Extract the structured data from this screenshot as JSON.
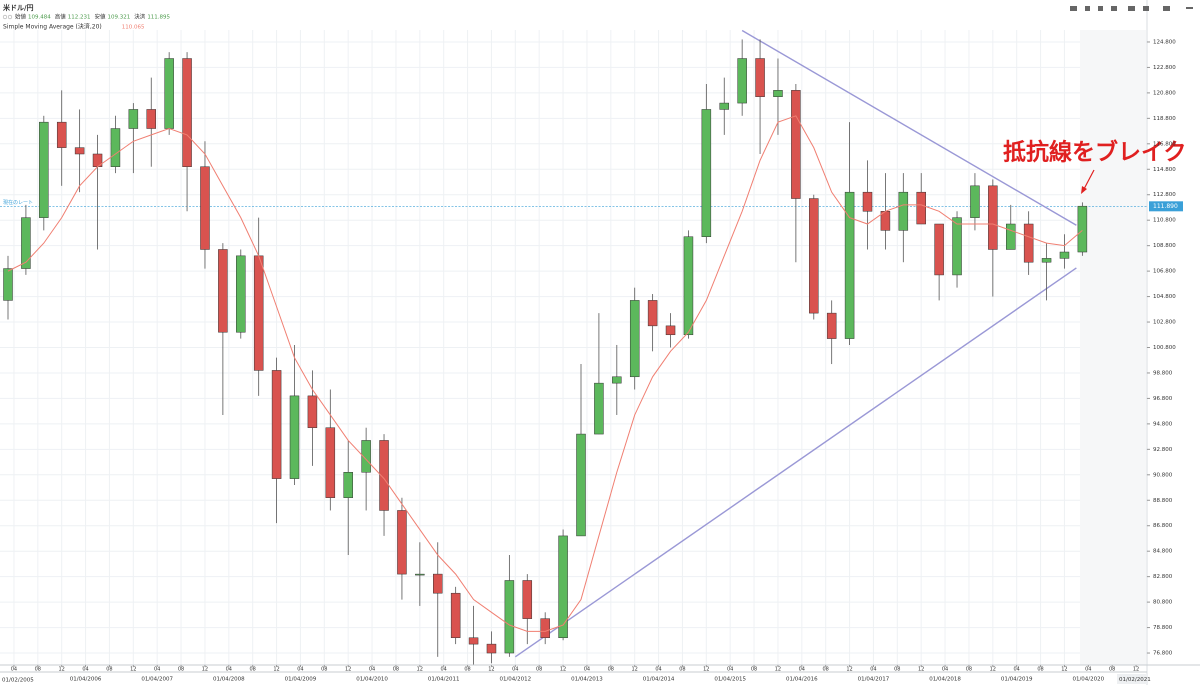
{
  "chart_data": {
    "type": "candlestick",
    "title": "米ドル/円",
    "ohlc_info": [
      {
        "label": "始値",
        "value": 109.484
      },
      {
        "label": "高値",
        "value": 112.231
      },
      {
        "label": "安値",
        "value": 109.321
      },
      {
        "label": "決済",
        "value": 111.895
      }
    ],
    "indicator": {
      "name": "Simple Moving Average (決済,20)",
      "value": 110.065,
      "color": "#f07f72"
    },
    "annotation": "抵抗線をブレイク",
    "current_price": {
      "label": "現在のレート",
      "value": {
        "value": 111.89,
        "label": "111.890"
      }
    },
    "range_start_label": "01/02/2005",
    "range_end_label": "01/02/2021",
    "up_color": "#5cb85c",
    "down_color": "#d9534f",
    "trendline_color": "#9a98d6",
    "grid": true,
    "xlim": [
      "2005-02",
      "2021-02"
    ],
    "ylim": [
      75.86,
      125.74
    ],
    "x": [
      "2005-02",
      "2005-05",
      "2005-08",
      "2005-11",
      "2006-02",
      "2006-05",
      "2006-08",
      "2006-11",
      "2007-02",
      "2007-05",
      "2007-08",
      "2007-11",
      "2008-02",
      "2008-05",
      "2008-08",
      "2008-11",
      "2009-02",
      "2009-05",
      "2009-08",
      "2009-11",
      "2010-02",
      "2010-05",
      "2010-08",
      "2010-11",
      "2011-02",
      "2011-05",
      "2011-08",
      "2011-11",
      "2012-02",
      "2012-05",
      "2012-08",
      "2012-11",
      "2013-02",
      "2013-05",
      "2013-08",
      "2013-11",
      "2014-02",
      "2014-05",
      "2014-08",
      "2014-11",
      "2015-02",
      "2015-05",
      "2015-08",
      "2015-11",
      "2016-02",
      "2016-05",
      "2016-08",
      "2016-11",
      "2017-02",
      "2017-05",
      "2017-08",
      "2017-11",
      "2018-02",
      "2018-05",
      "2018-08",
      "2018-11",
      "2019-02",
      "2019-05",
      "2019-08",
      "2019-11",
      "2020-02"
    ],
    "open": [
      104.5,
      107.0,
      111.0,
      118.5,
      116.5,
      116.0,
      115.0,
      118.0,
      119.5,
      118.0,
      123.5,
      115.0,
      108.5,
      102.0,
      108.0,
      99.0,
      90.5,
      97.0,
      94.5,
      89.0,
      91.0,
      93.5,
      88.0,
      83.0,
      83.0,
      81.5,
      78.0,
      77.5,
      76.8,
      82.5,
      79.5,
      78.0,
      86.0,
      94.0,
      98.0,
      98.5,
      104.5,
      102.5,
      101.8,
      109.5,
      119.5,
      120.0,
      123.5,
      120.5,
      121.0,
      112.5,
      103.5,
      101.5,
      113.0,
      111.5,
      110.0,
      113.0,
      110.5,
      106.5,
      111.0,
      113.5,
      108.5,
      110.5,
      107.5,
      107.8,
      108.3
    ],
    "high": [
      108.0,
      112.0,
      119.0,
      121.0,
      119.5,
      117.5,
      119.0,
      120.0,
      122.0,
      124.0,
      124.0,
      117.0,
      109.0,
      108.5,
      111.0,
      100.0,
      101.0,
      99.0,
      97.5,
      93.5,
      94.5,
      94.0,
      89.0,
      85.5,
      85.5,
      82.0,
      80.5,
      78.5,
      84.5,
      83.0,
      80.0,
      86.5,
      99.5,
      103.5,
      101.0,
      105.5,
      105.0,
      103.5,
      110.0,
      121.5,
      122.0,
      125.0,
      125.0,
      123.5,
      121.5,
      112.8,
      104.5,
      118.5,
      115.5,
      114.5,
      114.5,
      114.5,
      110.5,
      111.5,
      114.5,
      114.0,
      112.0,
      111.5,
      109.0,
      109.7,
      112.2
    ],
    "low": [
      103.0,
      106.5,
      110.0,
      113.5,
      113.0,
      108.5,
      114.5,
      114.5,
      115.0,
      117.5,
      111.5,
      107.0,
      95.5,
      101.5,
      97.0,
      87.0,
      90.0,
      91.5,
      88.0,
      84.5,
      88.0,
      86.0,
      81.0,
      80.5,
      76.5,
      77.5,
      75.9,
      76.0,
      76.5,
      77.5,
      77.5,
      77.8,
      86.0,
      94.0,
      95.5,
      97.5,
      100.5,
      100.8,
      101.5,
      109.0,
      117.5,
      119.0,
      116.0,
      117.5,
      107.5,
      103.0,
      99.5,
      101.0,
      108.5,
      108.5,
      107.5,
      110.5,
      104.5,
      105.5,
      110.0,
      104.8,
      108.5,
      106.5,
      104.5,
      107.0,
      108.0
    ],
    "close": [
      107.0,
      111.0,
      118.5,
      116.5,
      116.0,
      115.0,
      118.0,
      119.5,
      118.0,
      123.5,
      115.0,
      108.5,
      102.0,
      108.0,
      99.0,
      90.5,
      97.0,
      94.5,
      89.0,
      91.0,
      93.5,
      88.0,
      83.0,
      83.0,
      81.5,
      78.0,
      77.5,
      76.8,
      82.5,
      79.5,
      78.0,
      86.0,
      94.0,
      98.0,
      98.5,
      104.5,
      102.5,
      101.8,
      109.5,
      119.5,
      120.0,
      123.5,
      120.5,
      121.0,
      112.5,
      103.5,
      101.5,
      113.0,
      111.5,
      110.0,
      113.0,
      110.5,
      106.5,
      111.0,
      113.5,
      108.5,
      110.5,
      107.5,
      107.8,
      108.3,
      111.9
    ],
    "sma": [
      106.8,
      107.5,
      109.0,
      111.0,
      113.5,
      115.0,
      116.0,
      117.0,
      117.5,
      118.0,
      117.5,
      116.0,
      113.5,
      111.0,
      108.0,
      104.0,
      100.0,
      97.5,
      95.5,
      93.5,
      92.0,
      90.5,
      88.5,
      86.5,
      84.5,
      83.0,
      81.0,
      80.0,
      79.0,
      78.5,
      78.5,
      79.0,
      81.0,
      86.0,
      91.0,
      95.5,
      98.5,
      100.5,
      102.0,
      104.5,
      108.0,
      111.5,
      115.5,
      118.5,
      119.0,
      116.5,
      113.0,
      111.0,
      110.5,
      111.5,
      112.0,
      112.0,
      111.5,
      110.5,
      110.5,
      110.5,
      110.0,
      109.5,
      109.0,
      108.8,
      110.0
    ],
    "trendlines": [
      {
        "x": [
          "2015-06",
          "2020-02"
        ],
        "y": [
          125.7,
          110.4
        ]
      },
      {
        "x": [
          "2012-04",
          "2020-02"
        ],
        "y": [
          76.5,
          107.05
        ]
      }
    ],
    "yticks": [
      {
        "value": 76.8,
        "label": "76.800"
      },
      {
        "value": 78.8,
        "label": "78.800"
      },
      {
        "value": 80.8,
        "label": "80.800"
      },
      {
        "value": 82.8,
        "label": "82.800"
      },
      {
        "value": 84.8,
        "label": "84.800"
      },
      {
        "value": 86.8,
        "label": "86.800"
      },
      {
        "value": 88.8,
        "label": "88.800"
      },
      {
        "value": 90.8,
        "label": "90.800"
      },
      {
        "value": 92.8,
        "label": "92.800"
      },
      {
        "value": 94.8,
        "label": "94.800"
      },
      {
        "value": 96.8,
        "label": "96.800"
      },
      {
        "value": 98.8,
        "label": "98.800"
      },
      {
        "value": 100.8,
        "label": "100.800"
      },
      {
        "value": 102.8,
        "label": "102.800"
      },
      {
        "value": 104.8,
        "label": "104.800"
      },
      {
        "value": 106.8,
        "label": "106.800"
      },
      {
        "value": 108.8,
        "label": "108.800"
      },
      {
        "value": 110.8,
        "label": "110.800"
      },
      {
        "value": 112.8,
        "label": "112.800"
      },
      {
        "value": 114.8,
        "label": "114.800"
      },
      {
        "value": 116.8,
        "label": "116.800"
      },
      {
        "value": 118.8,
        "label": "118.800"
      },
      {
        "value": 120.8,
        "label": "120.800"
      },
      {
        "value": 122.8,
        "label": "122.800"
      },
      {
        "value": 124.8,
        "label": "124.800"
      }
    ],
    "xticks": [
      {
        "value": "2005-04",
        "label": "04"
      },
      {
        "value": "2005-08",
        "label": "08"
      },
      {
        "value": "2005-12",
        "label": "12"
      },
      {
        "value": "2006-04",
        "label": "04"
      },
      {
        "value": "2006-08",
        "label": "08"
      },
      {
        "value": "2006-12",
        "label": "12"
      },
      {
        "value": "2007-04",
        "label": "04"
      },
      {
        "value": "2007-08",
        "label": "08"
      },
      {
        "value": "2007-12",
        "label": "12"
      },
      {
        "value": "2008-04",
        "label": "04"
      },
      {
        "value": "2008-08",
        "label": "08"
      },
      {
        "value": "2008-12",
        "label": "12"
      },
      {
        "value": "2009-04",
        "label": "04"
      },
      {
        "value": "2009-08",
        "label": "08"
      },
      {
        "value": "2009-12",
        "label": "12"
      },
      {
        "value": "2010-04",
        "label": "04"
      },
      {
        "value": "2010-08",
        "label": "08"
      },
      {
        "value": "2010-12",
        "label": "12"
      },
      {
        "value": "2011-04",
        "label": "04"
      },
      {
        "value": "2011-08",
        "label": "08"
      },
      {
        "value": "2011-12",
        "label": "12"
      },
      {
        "value": "2012-04",
        "label": "04"
      },
      {
        "value": "2012-08",
        "label": "08"
      },
      {
        "value": "2012-12",
        "label": "12"
      },
      {
        "value": "2013-04",
        "label": "04"
      },
      {
        "value": "2013-08",
        "label": "08"
      },
      {
        "value": "2013-12",
        "label": "12"
      },
      {
        "value": "2014-04",
        "label": "04"
      },
      {
        "value": "2014-08",
        "label": "08"
      },
      {
        "value": "2014-12",
        "label": "12"
      },
      {
        "value": "2015-04",
        "label": "04"
      },
      {
        "value": "2015-08",
        "label": "08"
      },
      {
        "value": "2015-12",
        "label": "12"
      },
      {
        "value": "2016-04",
        "label": "04"
      },
      {
        "value": "2016-08",
        "label": "08"
      },
      {
        "value": "2016-12",
        "label": "12"
      },
      {
        "value": "2017-04",
        "label": "04"
      },
      {
        "value": "2017-08",
        "label": "08"
      },
      {
        "value": "2017-12",
        "label": "12"
      },
      {
        "value": "2018-04",
        "label": "04"
      },
      {
        "value": "2018-08",
        "label": "08"
      },
      {
        "value": "2018-12",
        "label": "12"
      },
      {
        "value": "2019-04",
        "label": "04"
      },
      {
        "value": "2019-08",
        "label": "08"
      },
      {
        "value": "2019-12",
        "label": "12"
      },
      {
        "value": "2020-04",
        "label": "04"
      },
      {
        "value": "2020-08",
        "label": "08"
      },
      {
        "value": "2020-12",
        "label": "12"
      }
    ],
    "year_labels": [
      {
        "value": "2006-04",
        "label": "01/04/2006"
      },
      {
        "value": "2007-04",
        "label": "01/04/2007"
      },
      {
        "value": "2008-04",
        "label": "01/04/2008"
      },
      {
        "value": "2009-04",
        "label": "01/04/2009"
      },
      {
        "value": "2010-04",
        "label": "01/04/2010"
      },
      {
        "value": "2011-04",
        "label": "01/04/2011"
      },
      {
        "value": "2012-04",
        "label": "01/04/2012"
      },
      {
        "value": "2013-04",
        "label": "01/04/2013"
      },
      {
        "value": "2014-04",
        "label": "01/04/2014"
      },
      {
        "value": "2015-04",
        "label": "01/04/2015"
      },
      {
        "value": "2016-04",
        "label": "01/04/2016"
      },
      {
        "value": "2017-04",
        "label": "01/04/2017"
      },
      {
        "value": "2018-04",
        "label": "01/04/2018"
      },
      {
        "value": "2019-04",
        "label": "01/04/2019"
      },
      {
        "value": "2020-04",
        "label": "01/04/2020"
      }
    ]
  }
}
